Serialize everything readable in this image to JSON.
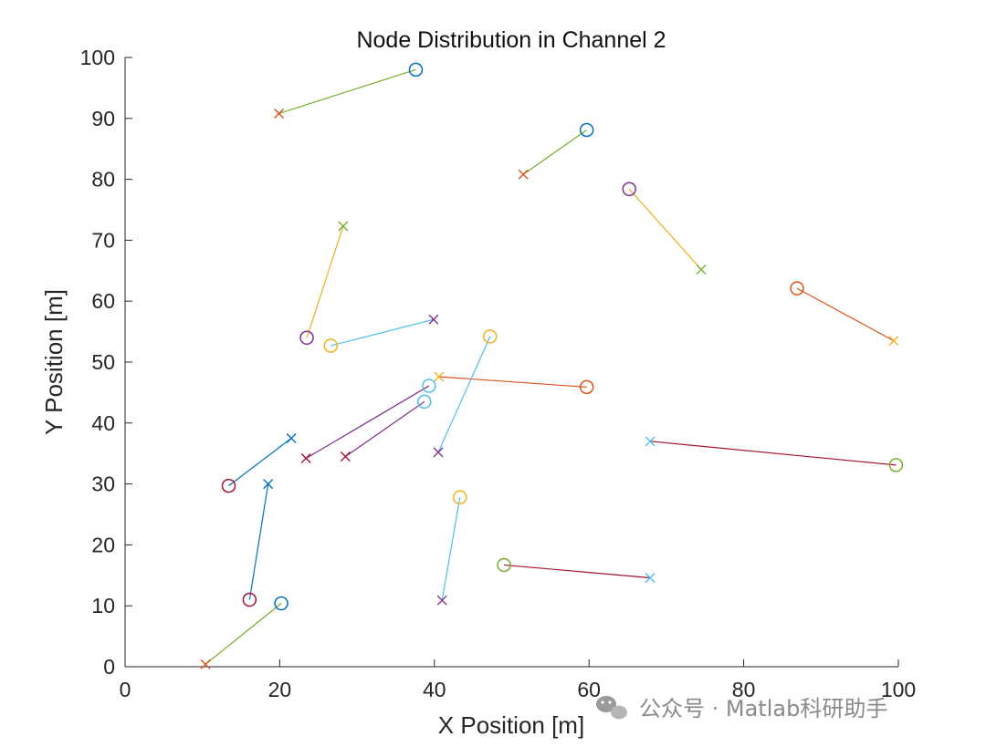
{
  "chart_data": {
    "type": "scatter",
    "title": "Node Distribution in Channel 2",
    "xlabel": "X Position [m]",
    "ylabel": "Y Position [m]",
    "xlim": [
      0,
      100
    ],
    "ylim": [
      0,
      100
    ],
    "xticks": [
      "0",
      "20",
      "40",
      "60",
      "80",
      "100"
    ],
    "yticks": [
      "0",
      "10",
      "20",
      "30",
      "40",
      "50",
      "60",
      "70",
      "80",
      "90",
      "100"
    ],
    "grid": false,
    "legend": "none",
    "marker_legend": {
      "circle": "o",
      "cross": "x"
    },
    "links": [
      {
        "circle": [
          37.6,
          98.0
        ],
        "cross": [
          19.9,
          90.8
        ],
        "circle_color": "#0072BD",
        "line_color": "#77AC30",
        "cross_color": "#D95319"
      },
      {
        "circle": [
          59.7,
          88.1
        ],
        "cross": [
          51.5,
          80.8
        ],
        "circle_color": "#0072BD",
        "line_color": "#77AC30",
        "cross_color": "#D95319"
      },
      {
        "circle": [
          65.2,
          78.4
        ],
        "cross": [
          74.5,
          65.2
        ],
        "circle_color": "#7E2F8E",
        "line_color": "#EDB120",
        "cross_color": "#77AC30"
      },
      {
        "circle": [
          23.5,
          54.0
        ],
        "cross": [
          28.2,
          72.3
        ],
        "circle_color": "#7E2F8E",
        "line_color": "#EDB120",
        "cross_color": "#77AC30"
      },
      {
        "circle": [
          26.6,
          52.7
        ],
        "cross": [
          39.9,
          57.0
        ],
        "circle_color": "#EDB120",
        "line_color": "#4DBEEE",
        "cross_color": "#7E2F8E"
      },
      {
        "circle": [
          86.9,
          62.1
        ],
        "cross": [
          99.4,
          53.5
        ],
        "circle_color": "#D95319",
        "line_color": "#D95319",
        "cross_color": "#EDB120"
      },
      {
        "circle": [
          59.7,
          45.9
        ],
        "cross": [
          40.6,
          47.6
        ],
        "circle_color": "#D95319",
        "line_color": "#D95319",
        "cross_color": "#EDB120"
      },
      {
        "circle": [
          47.2,
          54.2
        ],
        "cross": [
          40.5,
          35.2
        ],
        "circle_color": "#EDB120",
        "line_color": "#4DBEEE",
        "cross_color": "#7E2F8E"
      },
      {
        "circle": [
          39.3,
          46.1
        ],
        "cross": [
          23.4,
          34.2
        ],
        "circle_color": "#4DBEEE",
        "line_color": "#7E2F8E",
        "cross_color": "#A2142F"
      },
      {
        "circle": [
          38.7,
          43.5
        ],
        "cross": [
          28.5,
          34.5
        ],
        "circle_color": "#4DBEEE",
        "line_color": "#7E2F8E",
        "cross_color": "#A2142F"
      },
      {
        "circle": [
          13.4,
          29.7
        ],
        "cross": [
          21.5,
          37.5
        ],
        "circle_color": "#A2142F",
        "line_color": "#0072BD",
        "cross_color": "#0072BD"
      },
      {
        "circle": [
          16.1,
          11.0
        ],
        "cross": [
          18.5,
          30.0
        ],
        "circle_color": "#A2142F",
        "line_color": "#0072BD",
        "cross_color": "#0072BD"
      },
      {
        "circle": [
          99.7,
          33.1
        ],
        "cross": [
          67.9,
          37.0
        ],
        "circle_color": "#77AC30",
        "line_color": "#A2142F",
        "cross_color": "#4DBEEE"
      },
      {
        "circle": [
          49.0,
          16.7
        ],
        "cross": [
          67.9,
          14.6
        ],
        "circle_color": "#77AC30",
        "line_color": "#A2142F",
        "cross_color": "#4DBEEE"
      },
      {
        "circle": [
          43.3,
          27.8
        ],
        "cross": [
          41.0,
          10.9
        ],
        "circle_color": "#EDB120",
        "line_color": "#4DBEEE",
        "cross_color": "#7E2F8E"
      },
      {
        "circle": [
          20.2,
          10.4
        ],
        "cross": [
          10.4,
          0.4
        ],
        "circle_color": "#0072BD",
        "line_color": "#77AC30",
        "cross_color": "#D95319"
      }
    ]
  },
  "watermark": {
    "text": "公众号 · Matlab科研助手",
    "icon": "wechat-icon"
  }
}
